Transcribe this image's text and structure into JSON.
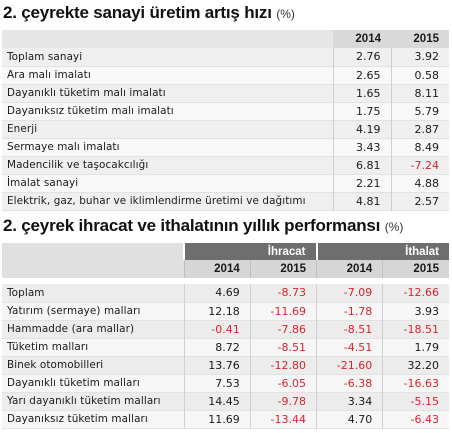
{
  "table1": {
    "title": "2. çeyrekte sanayi üretim artış hızı",
    "unit": "(%)",
    "columns": [
      "2014",
      "2015"
    ],
    "rows": [
      {
        "label": "Toplam sanayi",
        "values": [
          "2.76",
          "3.92"
        ]
      },
      {
        "label": "Ara malı imalatı",
        "values": [
          "2.65",
          "0.58"
        ]
      },
      {
        "label": "Dayanıklı tüketim malı imalatı",
        "values": [
          "1.65",
          "8.11"
        ]
      },
      {
        "label": "Dayanıksız tüketim malı imalatı",
        "values": [
          "1.75",
          "5.79"
        ]
      },
      {
        "label": "Enerji",
        "values": [
          "4.19",
          "2.87"
        ]
      },
      {
        "label": "Sermaye malı imalatı",
        "values": [
          "3.43",
          "8.49"
        ]
      },
      {
        "label": "Madencilik ve taşocakcılığı",
        "values": [
          "6.81",
          "-7.24"
        ]
      },
      {
        "label": "İmalat sanayi",
        "values": [
          "2.21",
          "4.88"
        ]
      },
      {
        "label": "Elektrik, gaz, buhar ve iklimlendirme üretimi ve dağıtımı",
        "values": [
          "4.81",
          "2.57"
        ]
      }
    ]
  },
  "table2": {
    "title": "2. çeyrek ihracat ve ithalatının yıllık performansı",
    "unit": "(%)",
    "groups": [
      "İhracat",
      "İthalat"
    ],
    "columns": [
      "2014",
      "2015",
      "2014",
      "2015"
    ],
    "rows": [
      {
        "label": "Toplam",
        "values": [
          "4.69",
          "-8.73",
          "-7.09",
          "-12.66"
        ]
      },
      {
        "label": "Yatırım (sermaye) malları",
        "values": [
          "12.18",
          "-11.69",
          "-1.78",
          "3.93"
        ]
      },
      {
        "label": "Hammadde (ara mallar)",
        "values": [
          "-0.41",
          "-7.86",
          "-8.51",
          "-18.51"
        ]
      },
      {
        "label": "Tüketim malları",
        "values": [
          "8.72",
          "-8.51",
          "-4.51",
          "1.79"
        ]
      },
      {
        "label": "Binek otomobilleri",
        "values": [
          "13.76",
          "-12.80",
          "-21.60",
          "32.20"
        ]
      },
      {
        "label": "Dayanıklı tüketim malları",
        "values": [
          "7.53",
          "-6.05",
          "-6.38",
          "-16.63"
        ]
      },
      {
        "label": "Yarı dayanıklı tüketim malları",
        "values": [
          "14.45",
          "-9.78",
          "3.34",
          "-5.15"
        ]
      },
      {
        "label": "Dayanıksız tüketim malları",
        "values": [
          "11.69",
          "-13.44",
          "4.70",
          "-6.43"
        ]
      }
    ]
  },
  "colors": {
    "negative": "#d6262e",
    "group_header": "#6e6e6e",
    "year_header": "#d6d6d6"
  }
}
